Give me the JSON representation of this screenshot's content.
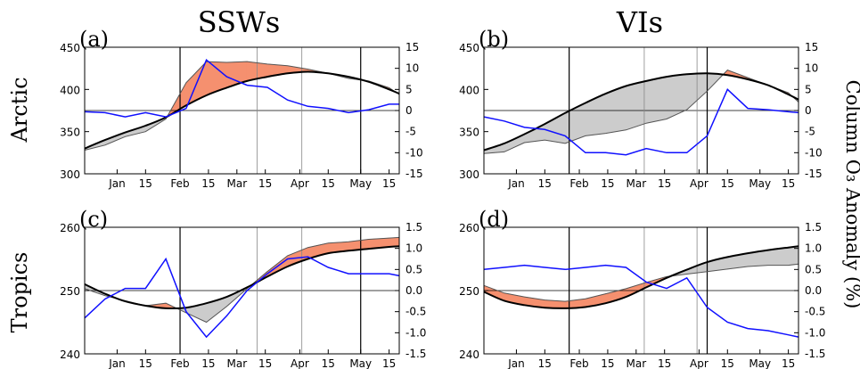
{
  "column_titles": [
    "SSWs",
    "VIs"
  ],
  "row_labels": [
    "Arctic",
    "Tropics"
  ],
  "right_axis_label": "Column O₃ Anomaly (%)",
  "colors": {
    "climatology": "#000000",
    "observed": "#555555",
    "anomaly": "#1010ff",
    "fill_positive": "#f5906f",
    "fill_negative": "#cccccc",
    "thin_vline": "#888888"
  },
  "x_tick_labels": [
    "Jan",
    "15",
    "Feb",
    "15",
    "Mar",
    "15",
    "Apr",
    "15",
    "May",
    "15"
  ],
  "chart_data": [
    {
      "type": "line",
      "panel_label": "(a)",
      "xlim": [
        "Dec 16",
        "May 20"
      ],
      "ylim": [
        300,
        450
      ],
      "yticks": [
        "300",
        "350",
        "400",
        "450"
      ],
      "ylim_right": [
        -15,
        15
      ],
      "yticks_right": [
        "-15",
        "-10",
        "-5",
        "0",
        "5",
        "10",
        "15"
      ],
      "reference_line_right": 0,
      "vlines_thick": [
        "Feb 1",
        "May 1"
      ],
      "vlines_thin": [
        "Mar 11",
        "Apr 2"
      ],
      "x": [
        "Dec 16",
        "Dec 26",
        "Jan 5",
        "Jan 15",
        "Jan 25",
        "Feb 4",
        "Feb 14",
        "Feb 24",
        "Mar 6",
        "Mar 16",
        "Mar 26",
        "Apr 5",
        "Apr 15",
        "Apr 25",
        "May 5",
        "May 15",
        "May 20"
      ],
      "series": [
        {
          "role": "climatology",
          "axis": "left",
          "values": [
            330,
            340,
            349,
            357,
            367,
            381,
            393,
            402,
            410,
            415,
            419,
            421,
            419,
            415,
            409,
            400,
            395
          ]
        },
        {
          "role": "observed",
          "axis": "left",
          "values": [
            328,
            334,
            344,
            350,
            365,
            408,
            433,
            432,
            433,
            430,
            428,
            424,
            419,
            413,
            410,
            402,
            394
          ]
        },
        {
          "role": "anomaly",
          "axis": "right",
          "values": [
            -0.3,
            -0.5,
            -1.5,
            -0.5,
            -1.5,
            0.5,
            12,
            8,
            6,
            5.5,
            2.5,
            1,
            0.5,
            -0.5,
            0.2,
            1.5,
            1.5
          ]
        }
      ]
    },
    {
      "type": "line",
      "panel_label": "(b)",
      "xlim": [
        "Dec 16",
        "May 20"
      ],
      "ylim": [
        300,
        450
      ],
      "yticks": [
        "300",
        "350",
        "400",
        "450"
      ],
      "ylim_right": [
        -15,
        15
      ],
      "yticks_right": [
        "-15",
        "-10",
        "-5",
        "0",
        "5",
        "10",
        "15"
      ],
      "reference_line_right": 0,
      "vlines_thick": [
        "Jan 27",
        "Apr 5"
      ],
      "vlines_thin": [
        "Mar 5",
        "Mar 31"
      ],
      "x": [
        "Dec 16",
        "Dec 26",
        "Jan 5",
        "Jan 15",
        "Jan 25",
        "Feb 4",
        "Feb 14",
        "Feb 24",
        "Mar 6",
        "Mar 16",
        "Mar 26",
        "Apr 5",
        "Apr 15",
        "Apr 25",
        "May 5",
        "May 15",
        "May 20"
      ],
      "series": [
        {
          "role": "climatology",
          "axis": "left",
          "values": [
            328,
            336,
            347,
            359,
            372,
            384,
            395,
            404,
            410,
            415,
            418,
            419,
            417,
            412,
            405,
            394,
            388
          ]
        },
        {
          "role": "observed",
          "axis": "left",
          "values": [
            324,
            326,
            337,
            340,
            336,
            345,
            348,
            352,
            360,
            365,
            376,
            398,
            423,
            414,
            405,
            396,
            385
          ]
        },
        {
          "role": "anomaly",
          "axis": "right",
          "values": [
            -1.5,
            -2.5,
            -4,
            -4.5,
            -6,
            -10,
            -10,
            -10.5,
            -9,
            -10,
            -10,
            -6,
            5,
            0.5,
            0.2,
            -0.3,
            -0.5
          ]
        }
      ]
    },
    {
      "type": "line",
      "panel_label": "(c)",
      "xlim": [
        "Dec 16",
        "May 20"
      ],
      "ylim": [
        240,
        260
      ],
      "yticks": [
        "240",
        "250",
        "260"
      ],
      "ylim_right": [
        -1.5,
        1.5
      ],
      "yticks_right": [
        "-1.5",
        "-1.0",
        "-0.5",
        "0.0",
        "0.5",
        "1.0",
        "1.5"
      ],
      "reference_line_right": 0,
      "vlines_thick": [
        "Feb 1",
        "May 1"
      ],
      "vlines_thin": [
        "Mar 11",
        "Apr 2"
      ],
      "x": [
        "Dec 16",
        "Dec 26",
        "Jan 5",
        "Jan 15",
        "Jan 25",
        "Feb 4",
        "Feb 14",
        "Feb 24",
        "Mar 6",
        "Mar 16",
        "Mar 26",
        "Apr 5",
        "Apr 15",
        "Apr 25",
        "May 5",
        "May 15",
        "May 20"
      ],
      "series": [
        {
          "role": "climatology",
          "axis": "left",
          "values": [
            251,
            249.5,
            248.3,
            247.6,
            247.2,
            247.3,
            248,
            249,
            250.5,
            252.2,
            253.8,
            255,
            255.9,
            256.3,
            256.6,
            256.9,
            257
          ]
        },
        {
          "role": "observed",
          "axis": "left",
          "values": [
            250.3,
            249.2,
            248.4,
            247.6,
            248,
            246.5,
            245,
            247.5,
            250.3,
            253,
            255.5,
            256.8,
            257.5,
            257.7,
            258.1,
            258.3,
            258.4
          ]
        },
        {
          "role": "anomaly",
          "axis": "right",
          "values": [
            -0.65,
            -0.2,
            0.05,
            0.05,
            0.75,
            -0.5,
            -1.1,
            -0.6,
            0,
            0.4,
            0.75,
            0.8,
            0.55,
            0.4,
            0.4,
            0.4,
            0.35
          ]
        }
      ]
    },
    {
      "type": "line",
      "panel_label": "(d)",
      "xlim": [
        "Dec 16",
        "May 20"
      ],
      "ylim": [
        240,
        260
      ],
      "yticks": [
        "240",
        "250",
        "260"
      ],
      "ylim_right": [
        -1.5,
        1.5
      ],
      "yticks_right": [
        "-1.5",
        "-1.0",
        "-0.5",
        "0.0",
        "0.5",
        "1.0",
        "1.5"
      ],
      "reference_line_right": 0,
      "vlines_thick": [
        "Jan 27",
        "Apr 5"
      ],
      "vlines_thin": [
        "Mar 5",
        "Mar 31"
      ],
      "x": [
        "Dec 16",
        "Dec 26",
        "Jan 5",
        "Jan 15",
        "Jan 25",
        "Feb 4",
        "Feb 14",
        "Feb 24",
        "Mar 6",
        "Mar 16",
        "Mar 26",
        "Apr 5",
        "Apr 15",
        "Apr 25",
        "May 5",
        "May 15",
        "May 20"
      ],
      "series": [
        {
          "role": "climatology",
          "axis": "left",
          "values": [
            249.8,
            248.4,
            247.7,
            247.3,
            247.2,
            247.4,
            248,
            249,
            250.5,
            252,
            253.3,
            254.5,
            255.3,
            255.9,
            256.4,
            256.8,
            257
          ]
        },
        {
          "role": "observed",
          "axis": "left",
          "values": [
            250.8,
            249.6,
            249,
            248.5,
            248.3,
            248.7,
            249.5,
            250.3,
            251.3,
            252.2,
            252.6,
            253,
            253.4,
            253.8,
            254,
            254,
            254.2
          ]
        },
        {
          "role": "anomaly",
          "axis": "right",
          "values": [
            0.5,
            0.55,
            0.6,
            0.55,
            0.5,
            0.55,
            0.6,
            0.55,
            0.2,
            0.05,
            0.3,
            -0.4,
            -0.75,
            -0.9,
            -0.95,
            -1.05,
            -1.1
          ]
        }
      ]
    }
  ]
}
